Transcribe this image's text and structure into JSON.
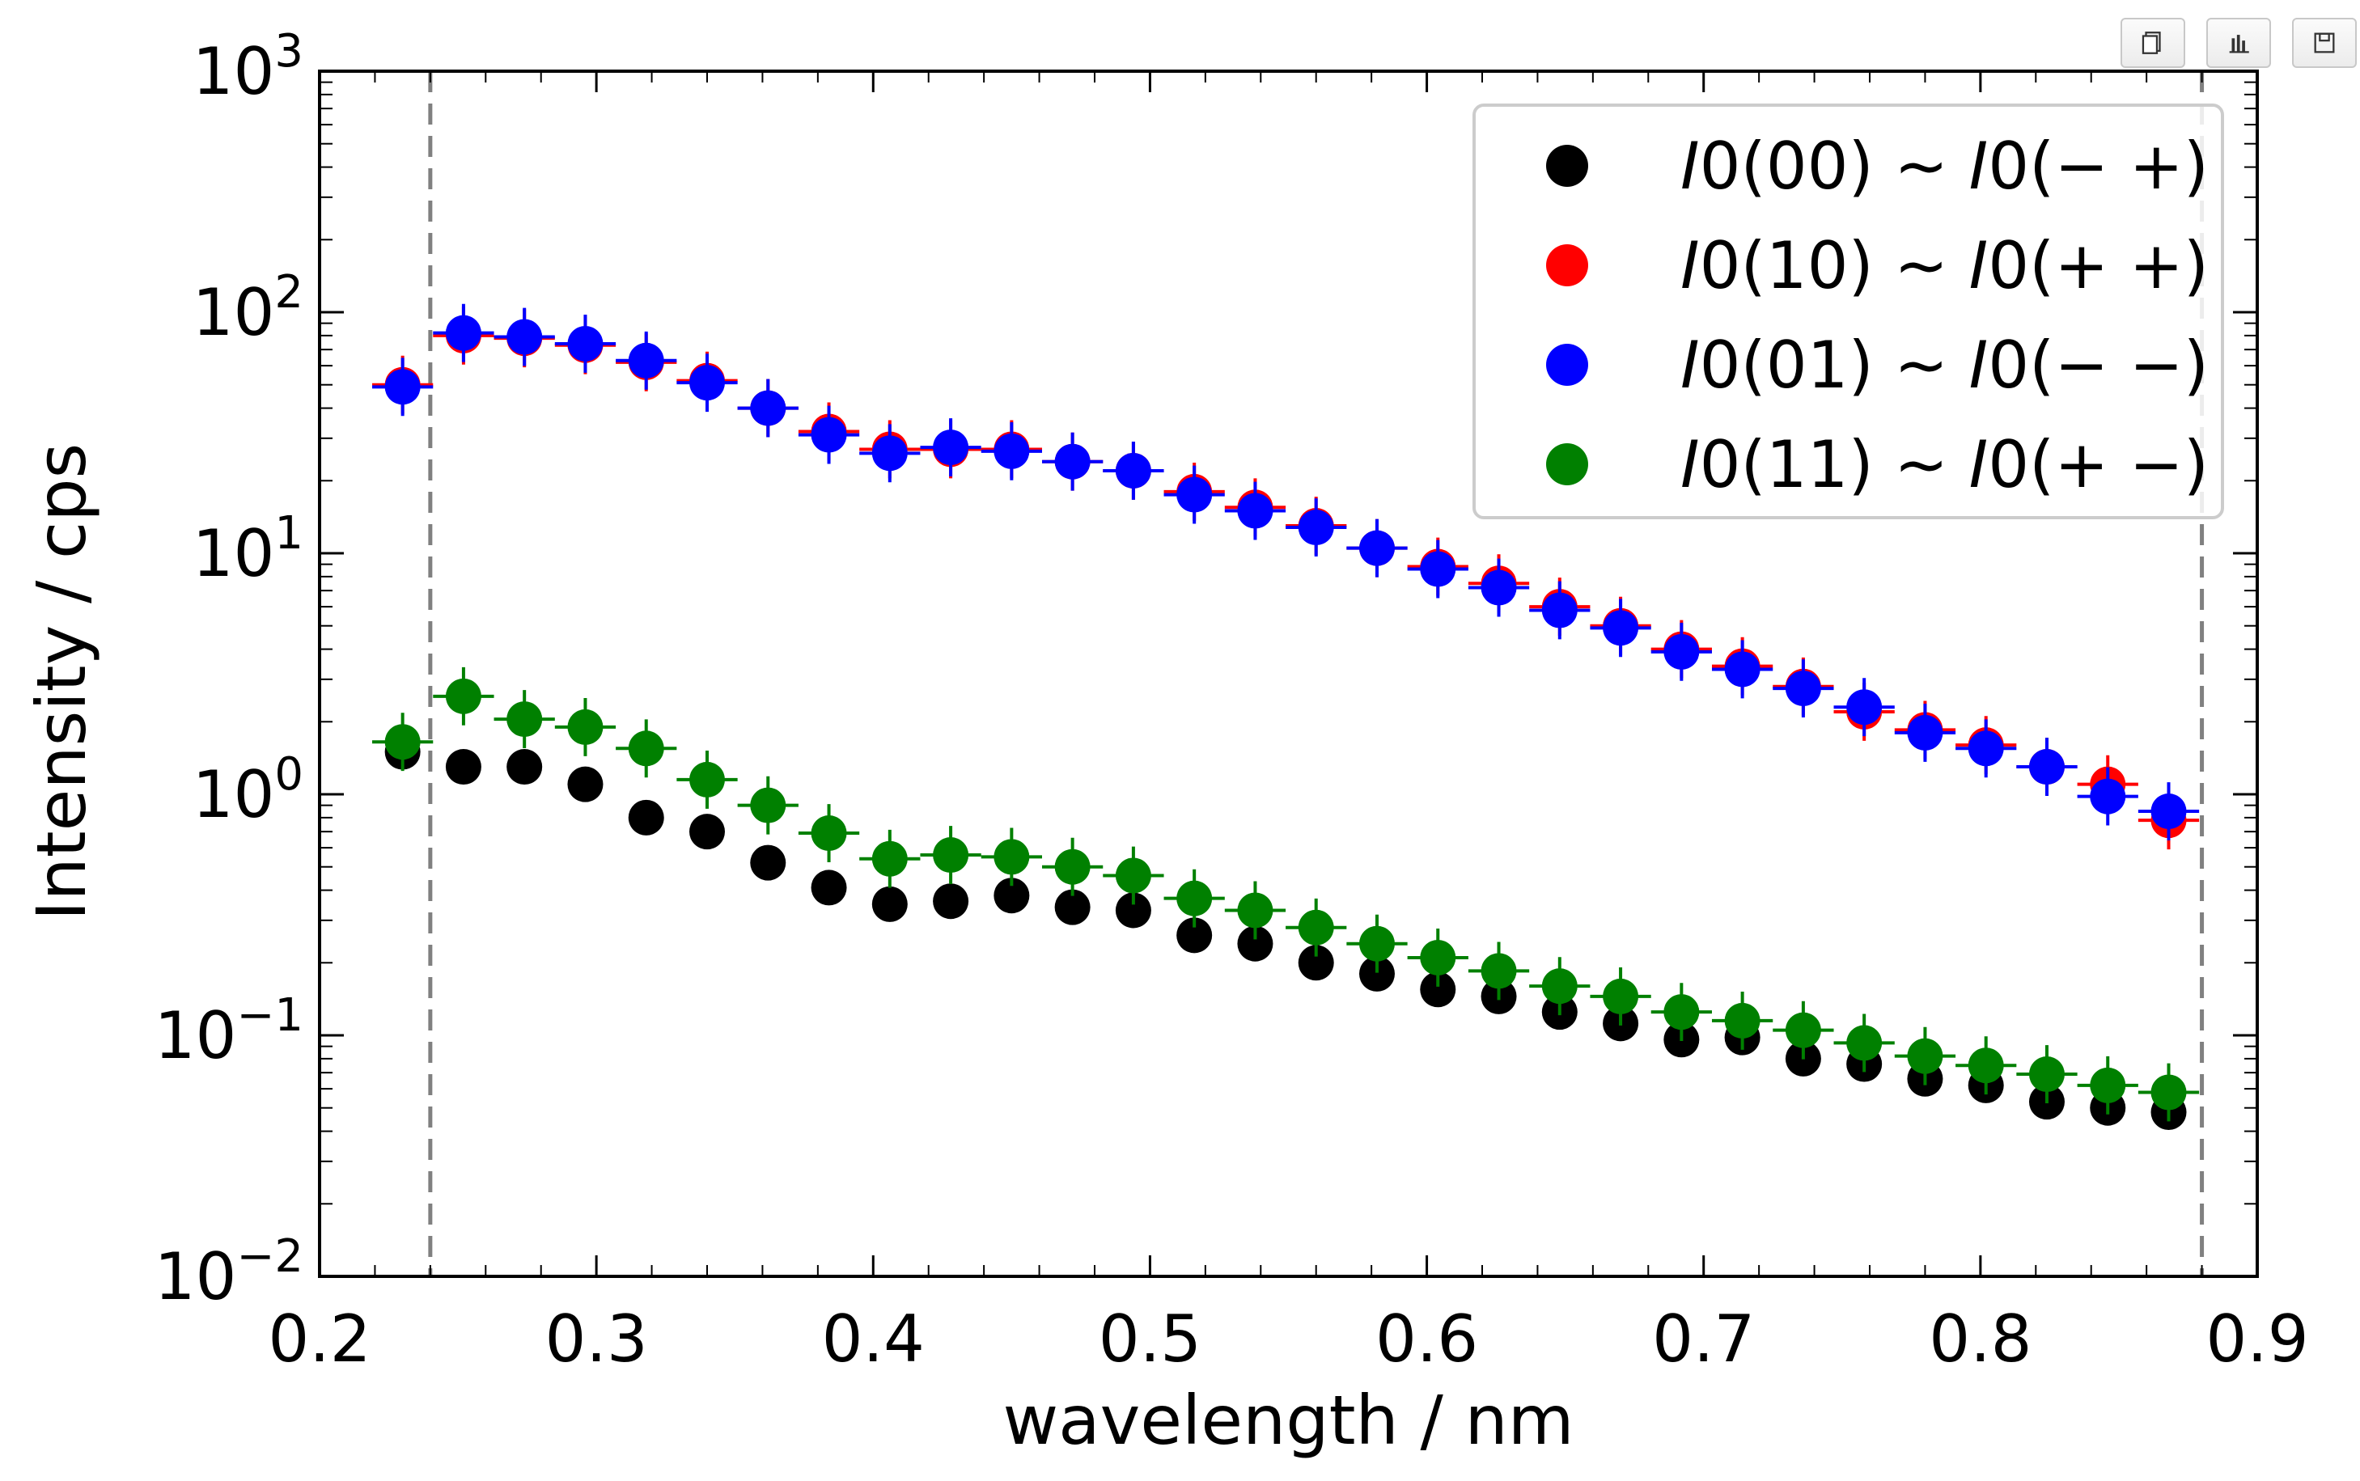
{
  "toolbar": {
    "items": [
      {
        "icon": "copy-icon"
      },
      {
        "icon": "bar-chart-icon"
      },
      {
        "icon": "save-icon"
      }
    ]
  },
  "chart_data": {
    "type": "scatter",
    "title": "",
    "xlabel": "wavelength / nm",
    "ylabel": "Intensity / cps",
    "xlim": [
      0.2,
      0.9
    ],
    "ylim": [
      0.01,
      1000
    ],
    "yscale": "log",
    "x_ticks": [
      "0.2",
      "0.3",
      "0.4",
      "0.5",
      "0.6",
      "0.7",
      "0.8",
      "0.9"
    ],
    "y_ticks": [
      {
        "base": "10",
        "exp": "−2"
      },
      {
        "base": "10",
        "exp": "−1"
      },
      {
        "base": "10",
        "exp": "0"
      },
      {
        "base": "10",
        "exp": "1"
      },
      {
        "base": "10",
        "exp": "2"
      },
      {
        "base": "10",
        "exp": "3"
      }
    ],
    "vlines": [
      0.24,
      0.88
    ],
    "grid": false,
    "legend_position": "top-right",
    "x": [
      0.23,
      0.252,
      0.274,
      0.296,
      0.318,
      0.34,
      0.362,
      0.384,
      0.406,
      0.428,
      0.45,
      0.472,
      0.494,
      0.516,
      0.538,
      0.56,
      0.582,
      0.604,
      0.626,
      0.648,
      0.67,
      0.692,
      0.714,
      0.736,
      0.758,
      0.78,
      0.802,
      0.824,
      0.846,
      0.868
    ],
    "series": [
      {
        "name": "I0(00) ~ I0(− +)",
        "color": "#000000",
        "error_bars": false,
        "values": [
          1.5,
          1.3,
          1.3,
          1.1,
          0.8,
          0.7,
          0.52,
          0.41,
          0.35,
          0.36,
          0.38,
          0.34,
          0.33,
          0.26,
          0.24,
          0.2,
          0.18,
          0.155,
          0.145,
          0.125,
          0.112,
          0.096,
          0.098,
          0.08,
          0.076,
          0.066,
          0.062,
          0.053,
          0.05,
          0.048
        ]
      },
      {
        "name": "I0(10) ~ I0(+ +)",
        "color": "#ff0000",
        "error_bars": true,
        "values": [
          50,
          80,
          78,
          73,
          62,
          52,
          40,
          32,
          27,
          27,
          27,
          24,
          22,
          18,
          15.5,
          13,
          10.5,
          8.8,
          7.5,
          6.0,
          5.0,
          4.0,
          3.4,
          2.8,
          2.2,
          1.85,
          1.6,
          1.3,
          1.1,
          0.78
        ]
      },
      {
        "name": "I0(01) ~ I0(− −)",
        "color": "#0000ff",
        "error_bars": true,
        "values": [
          49,
          82,
          79,
          74,
          63,
          51,
          40,
          31,
          26,
          27.5,
          26.5,
          24,
          22,
          17.5,
          15,
          12.8,
          10.5,
          8.6,
          7.2,
          5.8,
          4.9,
          3.9,
          3.3,
          2.75,
          2.3,
          1.8,
          1.55,
          1.3,
          0.98,
          0.85
        ]
      },
      {
        "name": "I0(11) ~ I0(+ −)",
        "color": "#008000",
        "error_bars": true,
        "values": [
          1.65,
          2.55,
          2.05,
          1.9,
          1.55,
          1.15,
          0.9,
          0.69,
          0.54,
          0.56,
          0.55,
          0.5,
          0.46,
          0.37,
          0.33,
          0.28,
          0.24,
          0.21,
          0.185,
          0.16,
          0.145,
          0.125,
          0.115,
          0.105,
          0.093,
          0.082,
          0.075,
          0.069,
          0.062,
          0.058
        ]
      }
    ],
    "legend": [
      {
        "pre": "I",
        "mid": "0(00) ~ ",
        "pre2": "I",
        "post": "0(− +)",
        "color": "#000000"
      },
      {
        "pre": "I",
        "mid": "0(10) ~ ",
        "pre2": "I",
        "post": "0(+ +)",
        "color": "#ff0000"
      },
      {
        "pre": "I",
        "mid": "0(01) ~ ",
        "pre2": "I",
        "post": "0(− −)",
        "color": "#0000ff"
      },
      {
        "pre": "I",
        "mid": "0(11) ~ ",
        "pre2": "I",
        "post": "0(+ −)",
        "color": "#008000"
      }
    ]
  }
}
